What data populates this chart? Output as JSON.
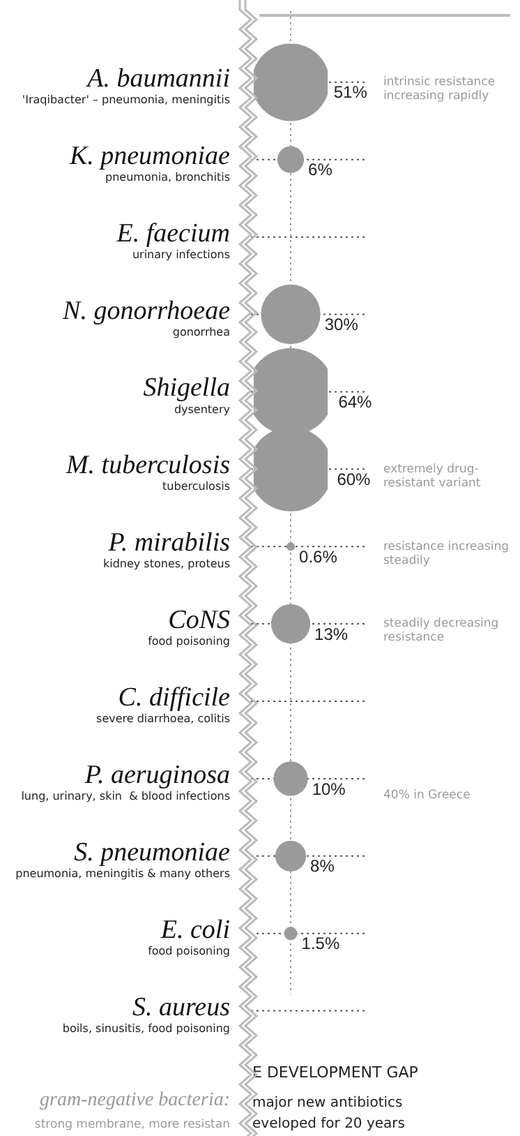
{
  "chart_data": {
    "type": "other",
    "categories": [
      "A. baumannii",
      "K. pneumoniae",
      "E. faecium",
      "N. gonorrhoeae",
      "Shigella",
      "M. tuberculosis",
      "P. mirabilis",
      "CoNS",
      "C. difficile",
      "P. aeruginosa",
      "S. pneumoniae",
      "E. coli",
      "S. aureus"
    ],
    "values": [
      51,
      6,
      null,
      30,
      64,
      60,
      0.6,
      13,
      null,
      10,
      8,
      1.5,
      null
    ],
    "value_labels": [
      "51%",
      "6%",
      null,
      "30%",
      "64%",
      "60%",
      "0.6%",
      "13%",
      null,
      "10%",
      "8%",
      "1.5%",
      null
    ],
    "color": "#9a9a9a",
    "legend": false,
    "annotations": [
      {
        "text": "'Iraqibacter' – pneumonia, meningitis",
        "y": "A. baumannii"
      },
      {
        "text": "pneumonia, bronchitis",
        "y": "K. pneumoniae"
      },
      {
        "text": "urinary infections",
        "y": "E. faecium"
      },
      {
        "text": "gonorrhea",
        "y": "N. gonorrhoeae"
      },
      {
        "text": "dysentery",
        "y": "Shigella"
      },
      {
        "text": "tuberculosis",
        "y": "M. tuberculosis"
      },
      {
        "text": "kidney stones, proteus",
        "y": "P. mirabilis"
      },
      {
        "text": "food poisoning",
        "y": "CoNS"
      },
      {
        "text": "severe diarrhoea, colitis",
        "y": "C. difficile"
      },
      {
        "text": "lung, urinary, skin  & blood infections",
        "y": "P. aeruginosa"
      },
      {
        "text": "pneumonia, meningitis & many others",
        "y": "S. pneumoniae"
      },
      {
        "text": "food poisoning",
        "y": "E. coli"
      },
      {
        "text": "boils, sinusitis, food poisoning",
        "y": "S. aureus"
      },
      {
        "text": "intrinsic resistance\nincreasing rapidly",
        "y": "A. baumannii"
      },
      {
        "text": "extremely drug-\nresistant variant",
        "y": "M. tuberculosis"
      },
      {
        "text": "resistance increasing\nsteadily",
        "y": "P. mirabilis"
      },
      {
        "text": "steadily decreasing\nresistance",
        "y": "CoNS"
      },
      {
        "text": "40% in Greece",
        "y": "P. aeruginosa"
      },
      "E DEVELOPMENT GAP",
      "major new antibiotics\neveloped for 20 years",
      "gram-negative bacteria:\nstrong membrane, more resistan"
    ]
  }
}
